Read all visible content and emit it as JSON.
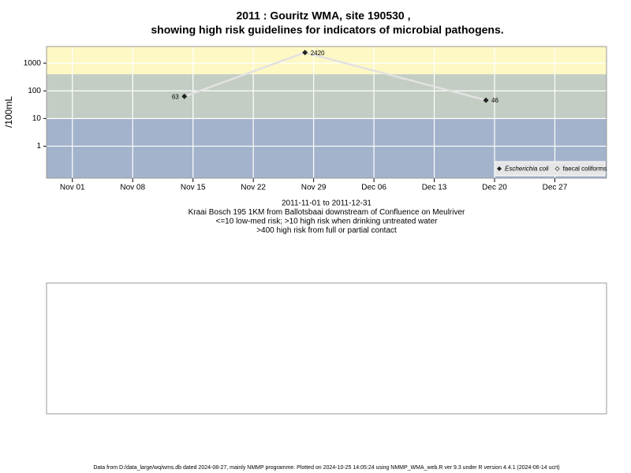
{
  "chart_data": {
    "type": "line",
    "title": "2011 : Gouritz WMA, site 190530 ,",
    "title2": "showing high risk guidelines for indicators of microbial pathogens.",
    "subtitle_lines": [
      "2011-11-01 to 2011-12-31",
      "Kraai Bosch 195 1KM from Ballotsbaai downstream of Confluence on Meulriver",
      "<=10 low-med risk; >10 high risk when drinking untreated water",
      ">400 high risk from full or partial contact"
    ],
    "y_label": "/100mL",
    "x": [
      "2011-11-14",
      "2011-11-28",
      "2011-12-19"
    ],
    "series": [
      {
        "name": "Escherichia coli",
        "color": "#222222",
        "line_color": "#e2e2e2",
        "values": [
          63,
          2420,
          46
        ]
      },
      {
        "name": "faecal coliforms",
        "color": "#222222",
        "line_color": "#e2e2e2",
        "values": [
          null,
          null,
          null
        ]
      }
    ],
    "xlim": [
      "2011-10-29",
      "2012-01-02"
    ],
    "xticks": [
      {
        "value": "2011-11-01",
        "label": "Nov 01"
      },
      {
        "value": "2011-11-08",
        "label": "Nov 08"
      },
      {
        "value": "2011-11-15",
        "label": "Nov 15"
      },
      {
        "value": "2011-11-22",
        "label": "Nov 22"
      },
      {
        "value": "2011-11-29",
        "label": "Nov 29"
      },
      {
        "value": "2011-12-06",
        "label": "Dec 06"
      },
      {
        "value": "2011-12-13",
        "label": "Dec 13"
      },
      {
        "value": "2011-12-20",
        "label": "Dec 20"
      },
      {
        "value": "2011-12-27",
        "label": "Dec 27"
      }
    ],
    "ylim": [
      0.07,
      4000
    ],
    "yticks": [
      1,
      10,
      100,
      1000
    ],
    "log_y": true,
    "grid": true,
    "thresholds": [
      10,
      400
    ],
    "band_colors": [
      "#a3b3cb",
      "#c3cdc3",
      "#fdf8c4"
    ],
    "legend": "bottom-right",
    "footer": "Data from D:/data_large/wq/wms.db dated 2024-08-27, mainly NMMP programme. Plotted on 2024-10-25 14:05:24 using NMMP_WMA_web.R ver 9.3 under R version 4.4.1 (2024-06-14 ucrt)"
  }
}
